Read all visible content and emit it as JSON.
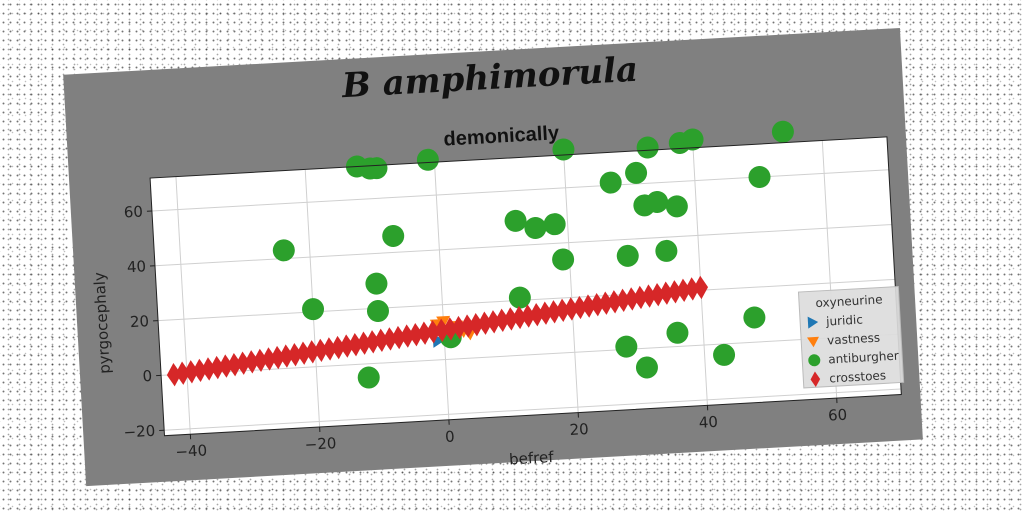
{
  "figure_title": "B amphimorula",
  "chart_data": {
    "type": "scatter",
    "title": "demonically",
    "xlabel": "befref",
    "ylabel": "pyrgocephaly",
    "xlim": [
      -44,
      70
    ],
    "ylim": [
      -22,
      72
    ],
    "xticks": [
      -40,
      -20,
      0,
      20,
      40,
      60
    ],
    "yticks": [
      -20,
      0,
      20,
      40,
      60
    ],
    "grid": true,
    "legend": {
      "title": "oxyneurine",
      "placement": "lower-right"
    },
    "series": [
      {
        "name": "juridic",
        "marker": "triangle-right",
        "color": "#1f77b4",
        "points": [
          [
            -1,
            7
          ],
          [
            1,
            8
          ],
          [
            2,
            9
          ]
        ]
      },
      {
        "name": "vastness",
        "marker": "triangle-down",
        "color": "#ff7f0e",
        "points": [
          [
            -1,
            13
          ],
          [
            0,
            14
          ],
          [
            2,
            12
          ],
          [
            3,
            10
          ],
          [
            4,
            9
          ],
          [
            2,
            8
          ]
        ]
      },
      {
        "name": "antiburgher",
        "marker": "circle",
        "color": "#2ca02c",
        "points": [
          [
            -12,
            72
          ],
          [
            -10,
            71
          ],
          [
            -9,
            71
          ],
          [
            -1,
            73
          ],
          [
            20,
            74
          ],
          [
            33,
            73
          ],
          [
            38,
            74
          ],
          [
            40,
            75
          ],
          [
            54,
            76
          ],
          [
            27,
            61
          ],
          [
            31,
            64
          ],
          [
            50,
            60
          ],
          [
            -24,
            43
          ],
          [
            -7,
            46
          ],
          [
            12,
            49
          ],
          [
            15,
            46
          ],
          [
            18,
            47
          ],
          [
            32,
            52
          ],
          [
            34,
            53
          ],
          [
            37,
            51
          ],
          [
            19,
            34
          ],
          [
            29,
            34
          ],
          [
            35,
            35
          ],
          [
            -20,
            21
          ],
          [
            -10,
            29
          ],
          [
            -10,
            19
          ],
          [
            12,
            21
          ],
          [
            1,
            8
          ],
          [
            28,
            1
          ],
          [
            36,
            5
          ],
          [
            48,
            9
          ],
          [
            -12,
            -5
          ],
          [
            31,
            -7
          ],
          [
            43,
            -4
          ]
        ]
      },
      {
        "name": "crosstoes",
        "marker": "diamond",
        "color": "#d62728",
        "points": "line"
      }
    ],
    "crosstoes_line": {
      "x_start": -42,
      "x_end": 40,
      "y_start": 0,
      "y_end": 21,
      "count": 62
    }
  }
}
